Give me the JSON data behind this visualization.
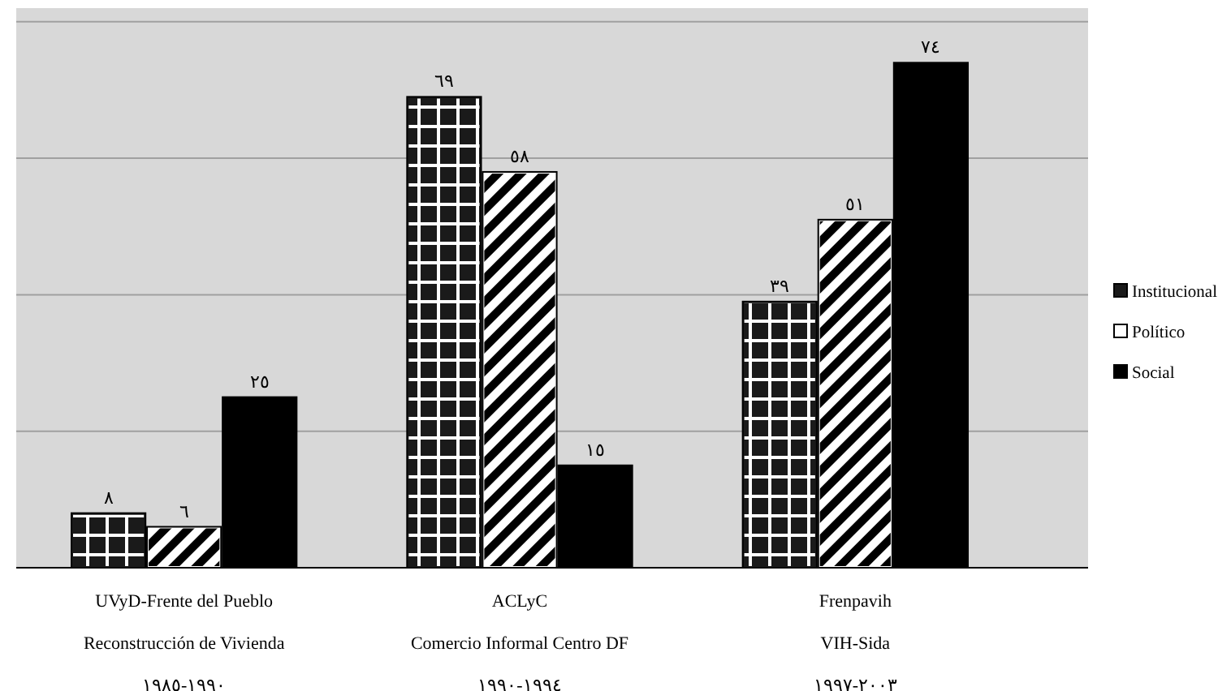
{
  "chart_data": {
    "type": "bar",
    "categories": [
      "UVyD-Frente del Pueblo\nReconstrucción de Vivienda\n١٩٩٠-١٩٨٥",
      "ACLyC\nComercio Informal Centro DF\n١٩٩٤-١٩٩٠",
      "Frenpavih\nVIH-Sida\n٢٠٠٣-١٩٩٧"
    ],
    "series": [
      {
        "name": "Institucional",
        "color": "#1a1a1a",
        "values": [
          8,
          69,
          39
        ],
        "value_labels": [
          "٨",
          "٦٩",
          "٣٩"
        ]
      },
      {
        "name": "Político",
        "color": "#ffffff",
        "values": [
          6,
          58,
          51
        ],
        "value_labels": [
          "٦",
          "٥٨",
          "٥١"
        ]
      },
      {
        "name": "Social",
        "color": "#000000",
        "values": [
          25,
          15,
          74
        ],
        "value_labels": [
          "٢٥",
          "١٥",
          "٧٤"
        ]
      }
    ],
    "ylim": [
      0,
      82
    ],
    "yticks": [
      {
        "value": 0,
        "label": null
      },
      {
        "value": 20,
        "label": null
      },
      {
        "value": 40,
        "label": null
      },
      {
        "value": 60,
        "label": null
      },
      {
        "value": 80,
        "label": null
      }
    ],
    "tick_labels": "x",
    "grid": "y",
    "legend": "right"
  }
}
